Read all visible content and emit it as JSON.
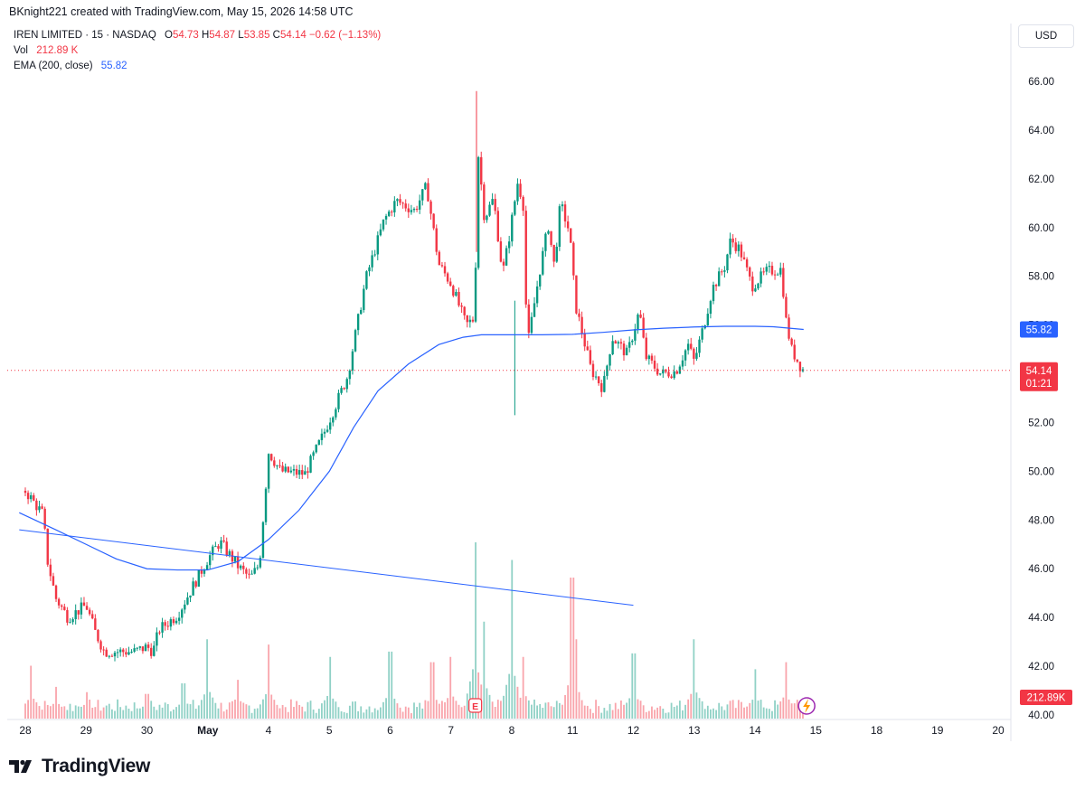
{
  "header": {
    "credit": "BKnight221 created with TradingView.com, May 15, 2026 14:58 UTC"
  },
  "legend": {
    "symbol": "IREN LIMITED · 15 · NASDAQ",
    "o_label": "O",
    "o_val": "54.73",
    "h_label": "H",
    "h_val": "54.87",
    "l_label": "L",
    "l_val": "53.85",
    "c_label": "C",
    "c_val": "54.14",
    "change": "−0.62 (−1.13%)",
    "vol_label": "Vol",
    "vol_val": "212.89 K",
    "ema_label": "EMA (200, close)",
    "ema_val": "55.82"
  },
  "currency_button": "USD",
  "footer": {
    "brand": "TradingView"
  },
  "colors": {
    "up": "#089981",
    "down": "#f23645",
    "ema": "#2962ff",
    "trend": "#2962ff"
  },
  "chart_data": {
    "type": "candlestick",
    "xlabels": [
      "28",
      "29",
      "30",
      "May",
      "4",
      "5",
      "6",
      "7",
      "8",
      "11",
      "12",
      "13",
      "14",
      "15",
      "18",
      "19",
      "20"
    ],
    "ylabels": [
      "66.00",
      "64.00",
      "62.00",
      "60.00",
      "58.00",
      "56.00",
      "54.00",
      "52.00",
      "50.00",
      "48.00",
      "46.00",
      "44.00",
      "42.00",
      "40.00"
    ],
    "ylim": [
      40,
      66
    ],
    "price_path": [
      [
        0,
        49.2
      ],
      [
        0.3,
        48.2
      ],
      [
        0.35,
        46.5
      ],
      [
        0.5,
        44.8
      ],
      [
        0.7,
        44.0
      ],
      [
        1.0,
        44.5
      ],
      [
        1.15,
        43.4
      ],
      [
        1.3,
        42.6
      ],
      [
        1.8,
        42.6
      ],
      [
        2.0,
        42.8
      ],
      [
        2.1,
        42.6
      ],
      [
        2.2,
        43.5
      ],
      [
        2.5,
        44.1
      ],
      [
        3.0,
        46.4
      ],
      [
        3.2,
        47.1
      ],
      [
        3.5,
        46.1
      ],
      [
        3.7,
        45.6
      ],
      [
        3.85,
        46.2
      ],
      [
        4.0,
        50.8
      ],
      [
        4.2,
        50.0
      ],
      [
        4.6,
        49.9
      ],
      [
        4.9,
        51.5
      ],
      [
        5.3,
        53.9
      ],
      [
        5.6,
        57.9
      ],
      [
        5.9,
        60.3
      ],
      [
        6.1,
        61.1
      ],
      [
        6.4,
        60.7
      ],
      [
        6.6,
        61.7
      ],
      [
        6.8,
        58.5
      ],
      [
        7.0,
        57.7
      ],
      [
        7.25,
        56.0
      ],
      [
        7.4,
        56.3
      ],
      [
        7.42,
        63.8
      ],
      [
        7.55,
        60.4
      ],
      [
        7.7,
        61.2
      ],
      [
        7.85,
        58.1
      ],
      [
        7.95,
        59.5
      ],
      [
        8.1,
        61.9
      ],
      [
        8.2,
        60.8
      ],
      [
        8.25,
        55.0
      ],
      [
        8.45,
        58.1
      ],
      [
        8.6,
        60.1
      ],
      [
        8.7,
        58.4
      ],
      [
        8.8,
        61.0
      ],
      [
        8.95,
        59.8
      ],
      [
        9.05,
        56.8
      ],
      [
        9.3,
        54.2
      ],
      [
        9.5,
        53.4
      ],
      [
        9.65,
        55.5
      ],
      [
        9.9,
        54.8
      ],
      [
        10.1,
        56.6
      ],
      [
        10.2,
        54.7
      ],
      [
        10.45,
        54.0
      ],
      [
        10.7,
        54.1
      ],
      [
        10.9,
        55.2
      ],
      [
        11.0,
        54.5
      ],
      [
        11.15,
        55.9
      ],
      [
        11.3,
        57.5
      ],
      [
        11.5,
        58.4
      ],
      [
        11.6,
        59.5
      ],
      [
        11.75,
        59.1
      ],
      [
        11.95,
        57.6
      ],
      [
        12.2,
        58.2
      ],
      [
        12.45,
        58.3
      ],
      [
        12.48,
        56.6
      ],
      [
        12.6,
        55.0
      ],
      [
        12.75,
        54.3
      ],
      [
        12.8,
        54.14
      ]
    ],
    "ema": [
      [
        -0.1,
        48.3
      ],
      [
        0.5,
        47.6
      ],
      [
        1.0,
        47.0
      ],
      [
        1.5,
        46.4
      ],
      [
        2.0,
        46.0
      ],
      [
        2.5,
        45.95
      ],
      [
        3.0,
        45.95
      ],
      [
        3.5,
        46.3
      ],
      [
        4.0,
        47.2
      ],
      [
        4.5,
        48.4
      ],
      [
        5.0,
        50.0
      ],
      [
        5.4,
        51.8
      ],
      [
        5.8,
        53.3
      ],
      [
        6.3,
        54.4
      ],
      [
        6.8,
        55.2
      ],
      [
        7.2,
        55.5
      ],
      [
        7.5,
        55.6
      ],
      [
        8.0,
        55.6
      ],
      [
        8.5,
        55.6
      ],
      [
        9.0,
        55.62
      ],
      [
        9.5,
        55.7
      ],
      [
        10.0,
        55.8
      ],
      [
        10.5,
        55.87
      ],
      [
        11.0,
        55.92
      ],
      [
        11.5,
        55.95
      ],
      [
        12.0,
        55.95
      ],
      [
        12.3,
        55.93
      ],
      [
        12.8,
        55.82
      ]
    ],
    "trendline": [
      [
        -0.1,
        47.6
      ],
      [
        10.0,
        44.5
      ]
    ],
    "volume_spikes": [
      [
        0.1,
        0.3
      ],
      [
        0.5,
        0.18
      ],
      [
        1.0,
        0.15
      ],
      [
        2.0,
        0.14
      ],
      [
        2.6,
        0.2
      ],
      [
        3.0,
        0.45
      ],
      [
        3.5,
        0.22
      ],
      [
        4.0,
        0.42
      ],
      [
        5.0,
        0.35
      ],
      [
        6.0,
        0.38
      ],
      [
        6.7,
        0.32
      ],
      [
        7.0,
        0.35
      ],
      [
        7.4,
        1.0
      ],
      [
        7.55,
        0.55
      ],
      [
        8.0,
        0.9
      ],
      [
        8.2,
        0.35
      ],
      [
        9.0,
        0.8
      ],
      [
        9.05,
        0.45
      ],
      [
        10.0,
        0.37
      ],
      [
        11.0,
        0.45
      ],
      [
        12.0,
        0.28
      ],
      [
        12.5,
        0.32
      ]
    ],
    "last_price_label": {
      "price": "54.14",
      "countdown": "01:21"
    },
    "ema_label": "55.82",
    "volume_label": "212.89K",
    "earnings_marker": "E"
  }
}
